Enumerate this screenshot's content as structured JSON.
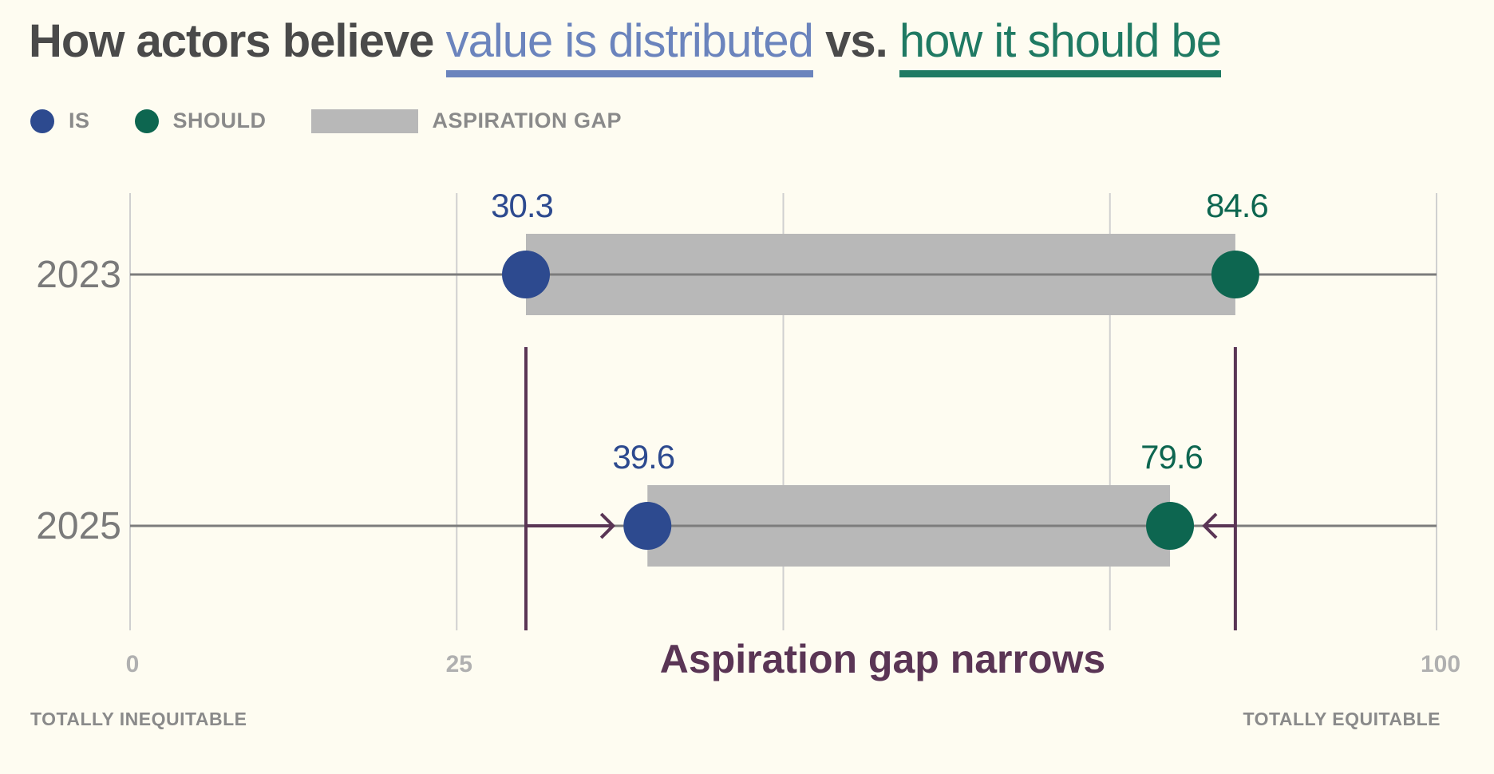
{
  "title": {
    "prefix": "How actors believe",
    "is_phrase": "value is distributed",
    "mid": "vs.",
    "should_phrase": "how it should be"
  },
  "legend": {
    "is_label": "IS",
    "should_label": "SHOULD",
    "gap_label": "ASPIRATION GAP"
  },
  "colors": {
    "is": "#2d4a8f",
    "should": "#0d6650",
    "gap": "#b8b8b8",
    "annotation": "#5a3555",
    "background": "#fefcf1"
  },
  "chart_data": {
    "type": "dumbbell",
    "xlim": [
      0,
      100
    ],
    "x_ticks": [
      0,
      25,
      100
    ],
    "gridlines": [
      0,
      25,
      50,
      75,
      100
    ],
    "x_end_labels": {
      "left": "TOTALLY INEQUITABLE",
      "right": "TOTALLY EQUITABLE"
    },
    "rows": [
      {
        "label": "2023",
        "is": 30.3,
        "should": 84.6
      },
      {
        "label": "2025",
        "is": 39.6,
        "should": 79.6
      }
    ],
    "annotation": "Aspiration gap narrows"
  }
}
